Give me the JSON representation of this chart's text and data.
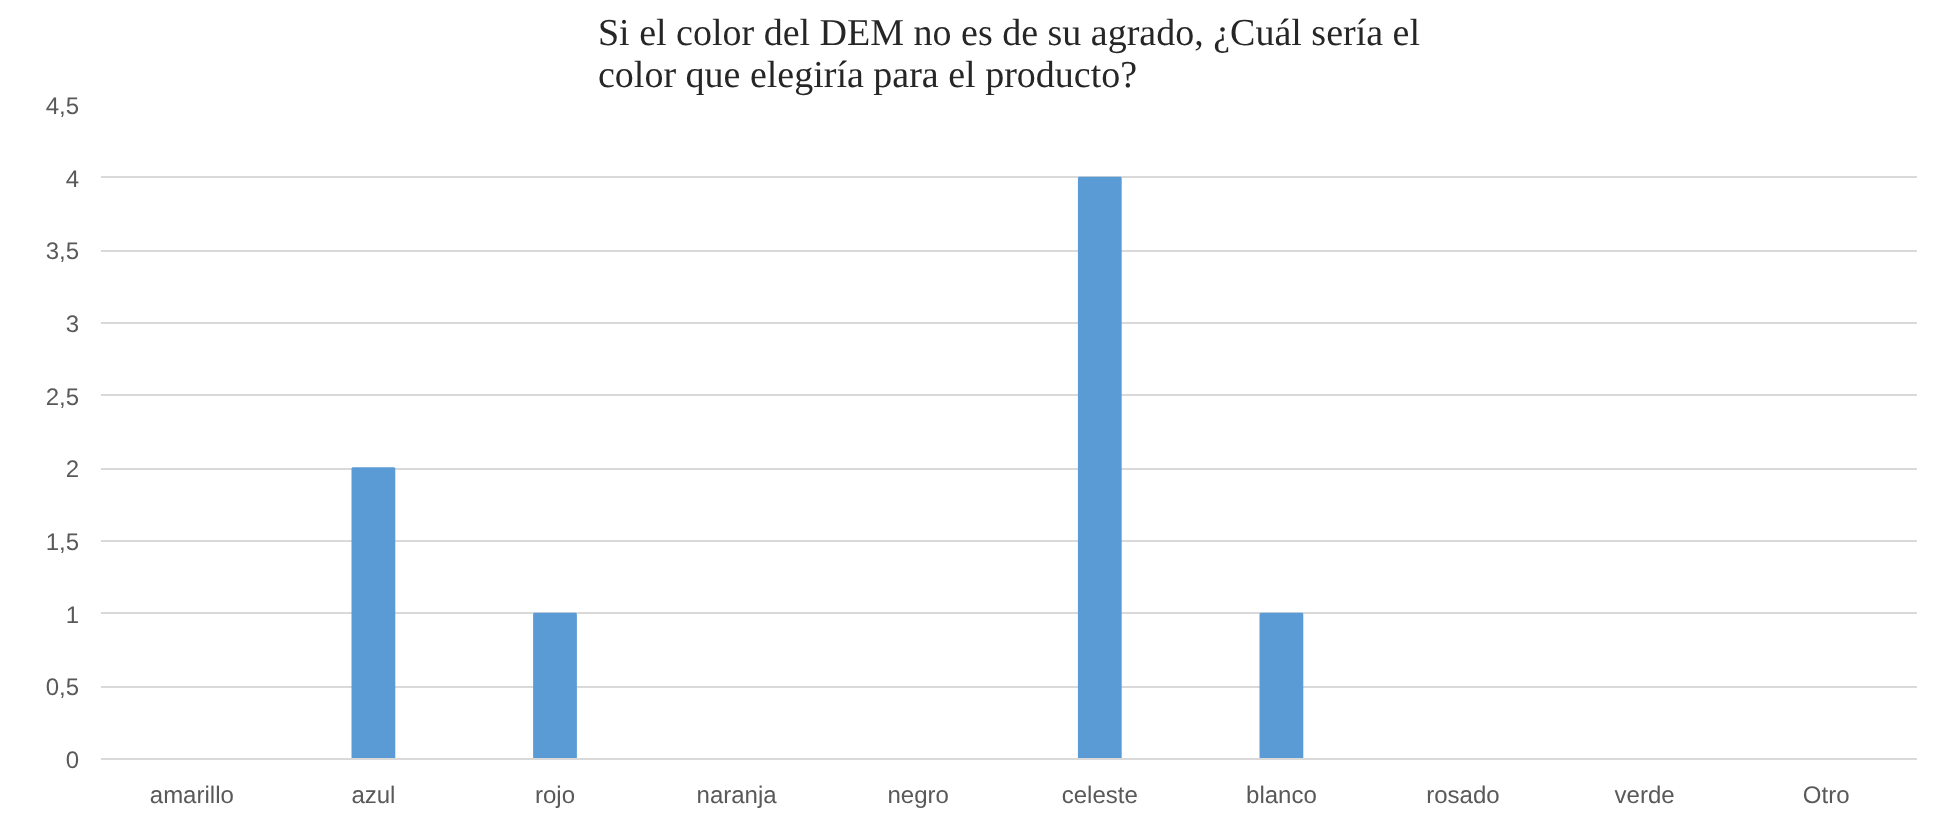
{
  "chart_data": {
    "type": "bar",
    "title": "Si el color del DEM no es de su agrado, ¿Cuál sería el\ncolor que elegiría para el producto?",
    "categories": [
      "amarillo",
      "azul",
      "rojo",
      "naranja",
      "negro",
      "celeste",
      "blanco",
      "rosado",
      "verde",
      "Otro"
    ],
    "values": [
      0,
      2,
      1,
      0,
      0,
      4,
      1,
      0,
      0,
      0
    ],
    "color": "#5b9bd5",
    "ylim": [
      0,
      4.5
    ],
    "yticks": [
      0,
      {
        "value": 0.5,
        "label": "0,5"
      },
      1,
      {
        "value": 1.5,
        "label": "1,5"
      },
      2,
      {
        "value": 2.5,
        "label": "2,5"
      },
      3,
      {
        "value": 3.5,
        "label": "3,5"
      },
      4,
      {
        "value": 4.5,
        "label": "4,5"
      }
    ],
    "grid": "y"
  }
}
